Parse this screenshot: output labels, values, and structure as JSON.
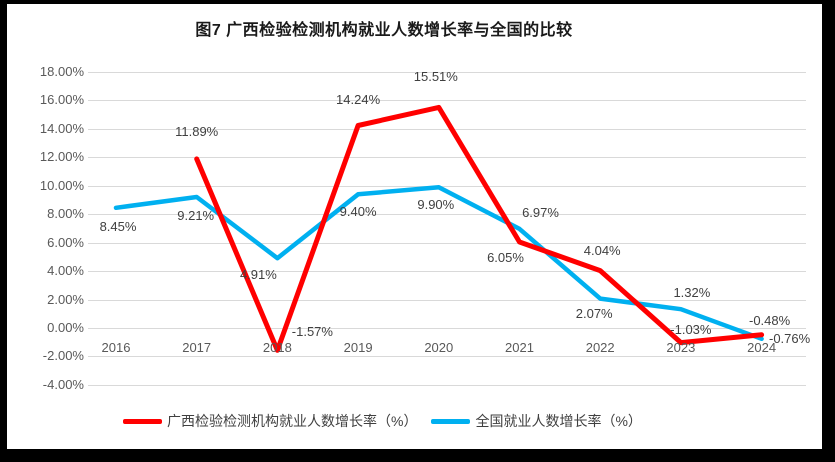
{
  "window": {
    "frame_color": "#000000",
    "paper_color": "#ffffff"
  },
  "chart_data": {
    "type": "line",
    "title": "图7 广西检验检测机构就业人数增长率与全国的比较",
    "categories": [
      "2016",
      "2017",
      "2018",
      "2019",
      "2020",
      "2021",
      "2022",
      "2023",
      "2024"
    ],
    "series": [
      {
        "name": "广西检验检测机构就业人数增长率（%）",
        "color": "#ff0000",
        "values": [
          null,
          11.89,
          -1.57,
          14.24,
          15.51,
          6.05,
          4.04,
          -1.03,
          -0.48
        ],
        "labels": [
          null,
          "11.89%",
          "-1.57%",
          "14.24%",
          "15.51%",
          "6.05%",
          "4.04%",
          "-1.03%",
          "-0.48%"
        ]
      },
      {
        "name": "全国就业人数增长率（%）",
        "color": "#00b0f0",
        "values": [
          8.45,
          9.21,
          4.91,
          9.4,
          9.9,
          6.97,
          2.07,
          1.32,
          -0.76
        ],
        "labels": [
          "8.45%",
          "9.21%",
          "4.91%",
          "9.40%",
          "9.90%",
          "6.97%",
          "2.07%",
          "1.32%",
          "-0.76%"
        ]
      }
    ],
    "y_axis": {
      "tick_labels": [
        "18.00%",
        "16.00%",
        "14.00%",
        "12.00%",
        "10.00%",
        "8.00%",
        "6.00%",
        "4.00%",
        "2.00%",
        "0.00%",
        "-2.00%",
        "-4.00%"
      ],
      "max": 18,
      "min": -4,
      "step": 2
    },
    "grid": true,
    "legend_position": "bottom",
    "gridline_color": "#d9d9d9",
    "axis_text_color": "#595959",
    "data_label_color": "#404040"
  }
}
